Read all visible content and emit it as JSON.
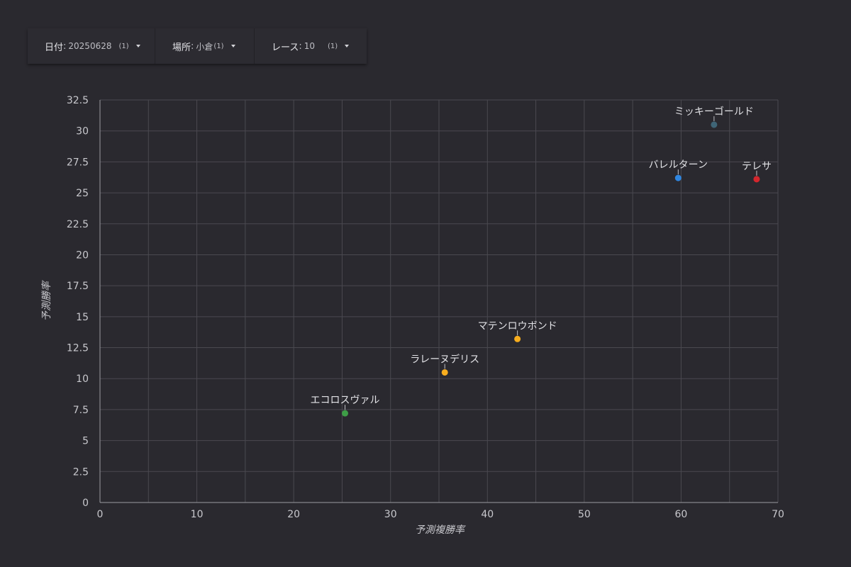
{
  "filters": [
    {
      "label": "日付",
      "value": "20250628",
      "count": "(1)"
    },
    {
      "label": "場所",
      "value": "小倉",
      "count": "(1)"
    },
    {
      "label": "レース",
      "value": "10",
      "count": "(1)"
    }
  ],
  "chart_data": {
    "type": "scatter",
    "xlabel": "予測複勝率",
    "ylabel": "予測勝率",
    "xlim": [
      0,
      70
    ],
    "ylim": [
      0,
      32.5
    ],
    "x_ticks": [
      0,
      10,
      20,
      30,
      40,
      50,
      60,
      70
    ],
    "y_ticks": [
      "0",
      "2.5",
      "5",
      "7.5",
      "10",
      "12.5",
      "15",
      "17.5",
      "20",
      "22.5",
      "25",
      "27.5",
      "30",
      "32.5"
    ],
    "grid": true,
    "points": [
      {
        "label": "ミッキーゴールド",
        "x": 63.4,
        "y": 30.5,
        "color": "#3f6577"
      },
      {
        "label": "バレルターン",
        "x": 59.7,
        "y": 26.2,
        "color": "#2f86e0"
      },
      {
        "label": "テレサ",
        "x": 67.8,
        "y": 26.1,
        "color": "#d3262d"
      },
      {
        "label": "マテンロウボンド",
        "x": 43.1,
        "y": 13.2,
        "color": "#f7ad1e"
      },
      {
        "label": "ラレーヌデリス",
        "x": 35.6,
        "y": 10.5,
        "color": "#f7ad1e"
      },
      {
        "label": "エコロスヴァル",
        "x": 25.3,
        "y": 7.2,
        "color": "#3e9e47"
      }
    ]
  }
}
